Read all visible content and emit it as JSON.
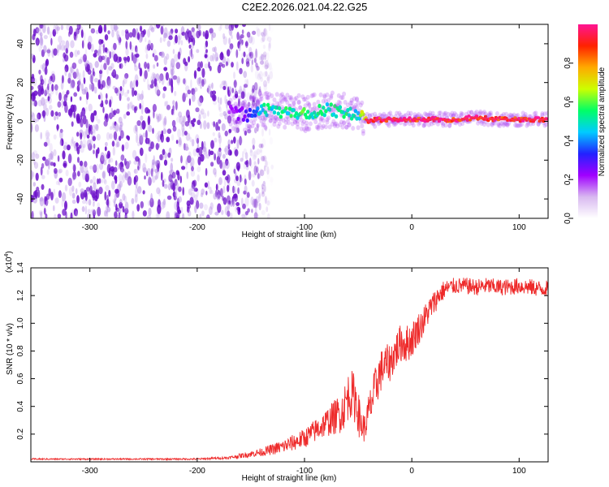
{
  "title": "C2E2.2026.021.04.22.G25",
  "colors": {
    "axis": "#000000",
    "snr_line": "#ee2a2a",
    "noise_dots": "#6a0dc9",
    "signal_core": "#ff2a55",
    "signal_ridge": "#19e6c8",
    "colorbar_stops": [
      "#ffffff",
      "#d8b8f0",
      "#a000ff",
      "#2222ff",
      "#00ccff",
      "#00ff66",
      "#ccff00",
      "#ffaa00",
      "#ff2200",
      "#ff1493"
    ]
  },
  "chart_data": [
    {
      "type": "heatmap",
      "name": "spectrogram",
      "xlabel": "Height of straight line (km)",
      "ylabel": "Frequency (Hz)",
      "xlim": [
        -355,
        127
      ],
      "ylim": [
        -50,
        50
      ],
      "xticks": [
        -300,
        -200,
        -100,
        0,
        100
      ],
      "xtick_labels": [
        "-300",
        "-200",
        "-100",
        "0",
        "100"
      ],
      "yticks": [
        -40,
        -20,
        0,
        20,
        40
      ],
      "ytick_labels": [
        "-40",
        "-20",
        "0",
        "20",
        "40"
      ],
      "description_bands": [
        {
          "x_range": [
            -355,
            -140
          ],
          "content": "broadband noise",
          "amplitude": 0.15
        },
        {
          "x_range": [
            -140,
            -45
          ],
          "freq_center": 5,
          "freq_spread": 4,
          "amplitude": 0.5
        },
        {
          "x_range": [
            -45,
            127
          ],
          "freq_center": 1,
          "freq_spread": 1,
          "amplitude": 0.95
        }
      ],
      "ridge": {
        "x": [
          -170,
          -150,
          -140,
          -120,
          -100,
          -80,
          -60,
          -50,
          -40,
          -30,
          -20,
          -10,
          0,
          20,
          40,
          60,
          80,
          100,
          127
        ],
        "freq": [
          5,
          3,
          6,
          5,
          4,
          6,
          5,
          3,
          0,
          1,
          1,
          1,
          1,
          1,
          1,
          2,
          1,
          1,
          1
        ],
        "amplitude": [
          0.2,
          0.3,
          0.5,
          0.5,
          0.55,
          0.5,
          0.5,
          0.45,
          0.95,
          0.95,
          0.95,
          0.95,
          0.95,
          0.95,
          0.95,
          0.95,
          0.95,
          0.95,
          0.95
        ]
      }
    },
    {
      "type": "colorbar",
      "name": "amplitude-colorbar",
      "label": "Normalized spectral amplitude",
      "ylim": [
        0,
        1
      ],
      "ticks": [
        0.0,
        0.2,
        0.4,
        0.6,
        0.8
      ],
      "tick_labels": [
        "0.0",
        "0.2",
        "0.4",
        "0.6",
        "0.8"
      ]
    },
    {
      "type": "line",
      "name": "snr",
      "xlabel": "Height of straight line (km)",
      "ylabel": "SNR (10 * v/v)",
      "y_multiplier": "(x10",
      "y_multiplier_exp": "4",
      "xlim": [
        -355,
        127
      ],
      "ylim": [
        0,
        1.4
      ],
      "xticks": [
        -300,
        -200,
        -100,
        0,
        100
      ],
      "xtick_labels": [
        "-300",
        "-200",
        "-100",
        "0",
        "100"
      ],
      "yticks": [
        0.2,
        0.4,
        0.6,
        0.8,
        1.0,
        1.2,
        1.4
      ],
      "ytick_labels": [
        "0.2",
        "0.4",
        "0.6",
        "0.8",
        "1.0",
        "1.2",
        "1.4"
      ],
      "series": [
        {
          "name": "SNR",
          "x": [
            -355,
            -300,
            -250,
            -200,
            -170,
            -155,
            -140,
            -120,
            -100,
            -80,
            -65,
            -58,
            -52,
            -48,
            -44,
            -40,
            -35,
            -30,
            -25,
            -20,
            -15,
            -10,
            -5,
            0,
            5,
            10,
            15,
            20,
            25,
            30,
            35,
            40,
            50,
            60,
            70,
            80,
            90,
            100,
            110,
            120,
            127
          ],
          "y": [
            0.02,
            0.02,
            0.02,
            0.02,
            0.03,
            0.05,
            0.07,
            0.11,
            0.17,
            0.28,
            0.36,
            0.5,
            0.45,
            0.28,
            0.24,
            0.36,
            0.5,
            0.64,
            0.7,
            0.72,
            0.8,
            0.86,
            0.85,
            0.88,
            0.95,
            1.0,
            1.08,
            1.14,
            1.2,
            1.24,
            1.26,
            1.27,
            1.27,
            1.26,
            1.27,
            1.26,
            1.26,
            1.27,
            1.26,
            1.25,
            1.25
          ],
          "noise": [
            0.005,
            0.005,
            0.005,
            0.006,
            0.01,
            0.02,
            0.03,
            0.05,
            0.07,
            0.1,
            0.15,
            0.18,
            0.18,
            0.14,
            0.1,
            0.14,
            0.16,
            0.16,
            0.14,
            0.14,
            0.14,
            0.14,
            0.14,
            0.13,
            0.12,
            0.11,
            0.1,
            0.09,
            0.08,
            0.07,
            0.06,
            0.06,
            0.06,
            0.06,
            0.06,
            0.06,
            0.06,
            0.06,
            0.06,
            0.06,
            0.06
          ]
        }
      ]
    }
  ]
}
